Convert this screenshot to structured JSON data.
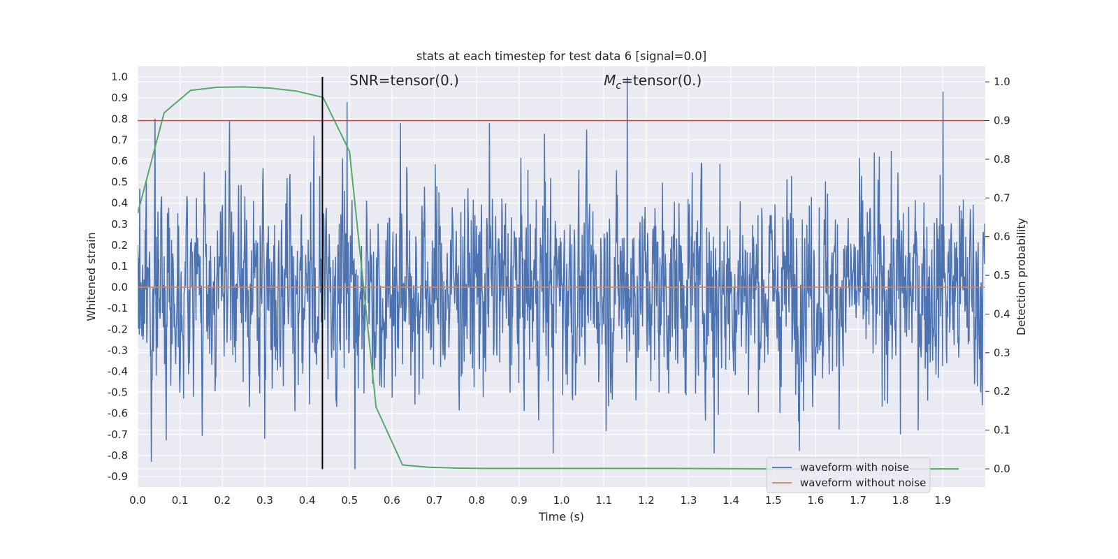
{
  "chart_data": {
    "type": "line",
    "title": "stats at each timestep for test data 6 [signal=0.0]",
    "xlabel": "Time (s)",
    "ylabel": "Whitened strain",
    "y2label": "Detection probability",
    "xlim": [
      0.0,
      2.0
    ],
    "ylim": [
      -0.95,
      1.05
    ],
    "y2lim": [
      -0.047,
      1.04
    ],
    "xticks": [
      "0.0",
      "0.1",
      "0.2",
      "0.3",
      "0.4",
      "0.5",
      "0.6",
      "0.7",
      "0.8",
      "0.9",
      "1.0",
      "1.1",
      "1.2",
      "1.3",
      "1.4",
      "1.5",
      "1.6",
      "1.7",
      "1.8",
      "1.9"
    ],
    "yticks": [
      "1.0",
      "0.9",
      "0.8",
      "0.7",
      "0.6",
      "0.5",
      "0.4",
      "0.3",
      "0.2",
      "0.1",
      "0.0",
      "-0.1",
      "-0.2",
      "-0.3",
      "-0.4",
      "-0.5",
      "-0.6",
      "-0.7",
      "-0.8",
      "-0.9"
    ],
    "y2ticks": [
      "1.0",
      "0.9",
      "0.8",
      "0.7",
      "0.6",
      "0.5",
      "0.4",
      "0.3",
      "0.2",
      "0.1",
      "0.0"
    ],
    "grid": true,
    "legend_position": "lower-right",
    "annotations": [
      {
        "text_plain": "SNR=tensor(0.)",
        "x": 0.5
      },
      {
        "text_prefix": "M",
        "text_sub": "c",
        "text_suffix": "=tensor(0.)",
        "x": 1.1
      }
    ],
    "threshold_line": {
      "y2": 0.9,
      "color": "#c44e52"
    },
    "vertical_line": {
      "x": 0.436,
      "y_from": -0.865,
      "y_to": 1.0,
      "color": "#000000"
    },
    "series": [
      {
        "name": "waveform with noise",
        "color": "#4c72b0",
        "axis": "left",
        "kind": "noise",
        "n_points": 2048,
        "x_range": [
          0.0,
          1.999
        ],
        "std": 0.24,
        "min": -0.865,
        "max": 1.0,
        "peaks": [
          {
            "x": 0.0325,
            "y": -0.83
          },
          {
            "x": 0.494,
            "y": 0.88
          },
          {
            "x": 0.513,
            "y": -0.865
          },
          {
            "x": 0.62,
            "y": 0.78
          },
          {
            "x": 0.83,
            "y": 0.78
          },
          {
            "x": 0.96,
            "y": 0.73
          },
          {
            "x": 0.98,
            "y": -0.79
          },
          {
            "x": 1.06,
            "y": 0.75
          },
          {
            "x": 1.155,
            "y": 1.0
          },
          {
            "x": 1.36,
            "y": -0.79
          },
          {
            "x": 1.9,
            "y": 0.93
          },
          {
            "x": 1.8,
            "y": -0.7
          },
          {
            "x": 0.3,
            "y": -0.72
          }
        ]
      },
      {
        "name": "waveform without noise",
        "color": "#dd8452",
        "axis": "left",
        "x": [
          0.0,
          1.999
        ],
        "values": [
          0.0,
          0.0
        ]
      },
      {
        "name": "",
        "color": "#55a868",
        "axis": "right",
        "x": [
          0.0,
          0.0625,
          0.125,
          0.1875,
          0.25,
          0.3125,
          0.375,
          0.4375,
          0.5,
          0.5625,
          0.625,
          0.6875,
          0.75,
          0.8125,
          0.875,
          1.0,
          1.25,
          1.5,
          1.75,
          1.9375
        ],
        "values": [
          0.66,
          0.92,
          0.978,
          0.986,
          0.987,
          0.984,
          0.976,
          0.96,
          0.82,
          0.16,
          0.01,
          0.004,
          0.002,
          0.001,
          0.001,
          0.001,
          0.001,
          0.0,
          0.0,
          0.0
        ]
      }
    ]
  }
}
